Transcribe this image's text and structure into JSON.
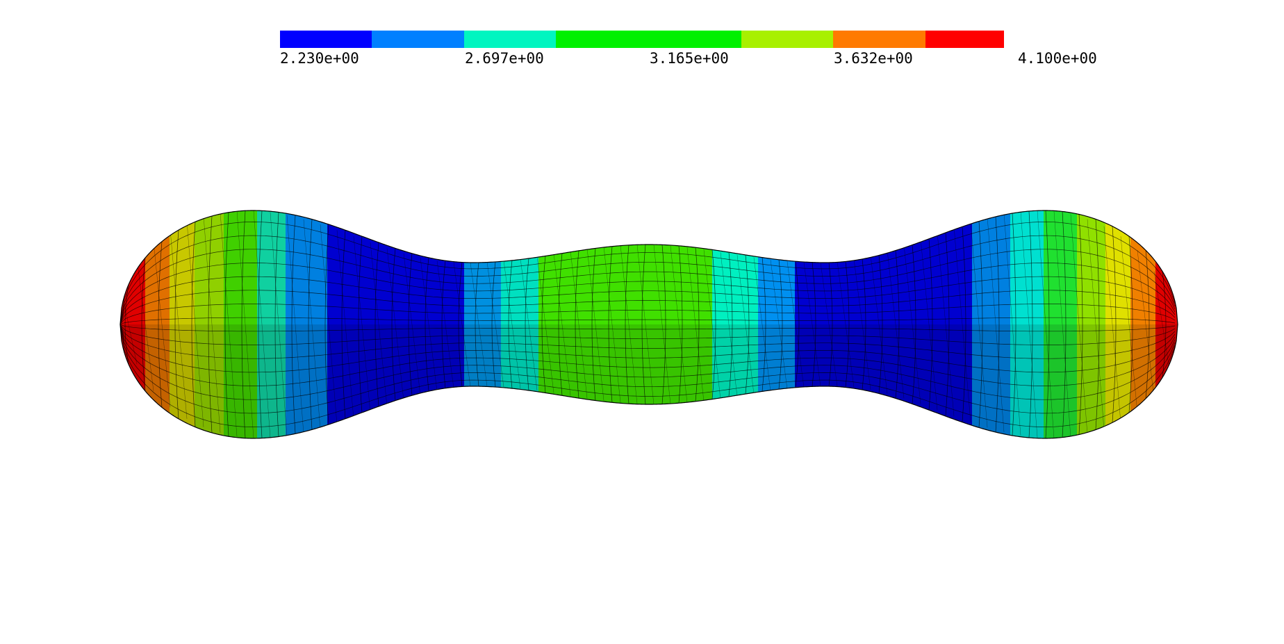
{
  "colorbar": {
    "labels": [
      "2.230e+00",
      "2.697e+00",
      "3.165e+00",
      "3.632e+00",
      "4.100e+00"
    ]
  }
}
